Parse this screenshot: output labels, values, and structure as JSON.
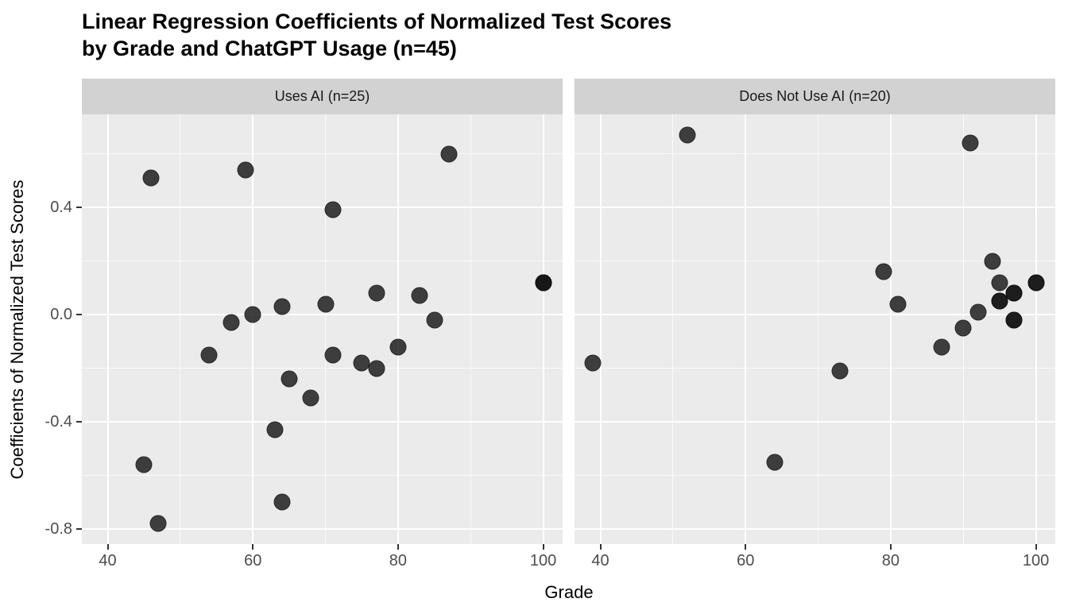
{
  "colors": {
    "background": "#FFFFFF",
    "panel_background": "#EBEBEB",
    "strip_background": "#D2D2D2",
    "gridline": "#FFFFFF",
    "point": "#161616",
    "tick_label": "#4D4D4D",
    "title_text": "#000000"
  },
  "chart_data": {
    "type": "scatter",
    "title_line1": "Linear Regression Coefficients of Normalized Test Scores",
    "title_line2": "by Grade and ChatGPT Usage (n=45)",
    "xlabel": "Grade",
    "ylabel": "Coefficients of Normalized Test Scores",
    "total_n": 45,
    "xlim": [
      36.44,
      102.67
    ],
    "ylim": [
      -0.856,
      0.747
    ],
    "grid": "on",
    "legend_position": "none",
    "x_ticks": [
      40,
      60,
      80,
      100
    ],
    "x_tick_labels": [
      "40",
      "60",
      "80",
      "100"
    ],
    "x_minor": [
      50,
      70,
      90
    ],
    "y_ticks": [
      0.4,
      0.0,
      -0.4,
      -0.8
    ],
    "y_tick_labels": [
      "0.4",
      "0.0",
      "-0.4",
      "-0.8"
    ],
    "y_minor": [
      0.6,
      0.2,
      -0.2,
      -0.6
    ],
    "facets": [
      {
        "label": "Uses AI (n=25)",
        "n": 25,
        "points": [
          [
            46,
            0.51
          ],
          [
            59,
            0.54
          ],
          [
            87,
            0.6
          ],
          [
            71,
            0.39
          ],
          [
            100,
            0.12
          ],
          [
            100,
            0.12
          ],
          [
            100,
            0.12
          ],
          [
            83,
            0.07
          ],
          [
            77,
            0.08
          ],
          [
            70,
            0.04
          ],
          [
            64,
            0.03
          ],
          [
            60,
            0.0
          ],
          [
            57,
            -0.03
          ],
          [
            85,
            -0.02
          ],
          [
            54,
            -0.15
          ],
          [
            71,
            -0.15
          ],
          [
            75,
            -0.18
          ],
          [
            77,
            -0.2
          ],
          [
            80,
            -0.12
          ],
          [
            65,
            -0.24
          ],
          [
            68,
            -0.31
          ],
          [
            63,
            -0.43
          ],
          [
            45,
            -0.56
          ],
          [
            47,
            -0.78
          ],
          [
            64,
            -0.7
          ]
        ]
      },
      {
        "label": "Does Not Use AI (n=20)",
        "n": 20,
        "points": [
          [
            52,
            0.67
          ],
          [
            91,
            0.64
          ],
          [
            79,
            0.16
          ],
          [
            81,
            0.04
          ],
          [
            39,
            -0.18
          ],
          [
            73,
            -0.21
          ],
          [
            64,
            -0.55
          ],
          [
            94,
            0.2
          ],
          [
            95,
            0.12
          ],
          [
            100,
            0.12
          ],
          [
            100,
            0.12
          ],
          [
            97,
            0.08
          ],
          [
            97,
            0.08
          ],
          [
            95,
            0.05
          ],
          [
            95,
            0.05
          ],
          [
            92,
            0.01
          ],
          [
            97,
            -0.02
          ],
          [
            97,
            -0.02
          ],
          [
            90,
            -0.05
          ],
          [
            87,
            -0.12
          ]
        ]
      }
    ]
  }
}
